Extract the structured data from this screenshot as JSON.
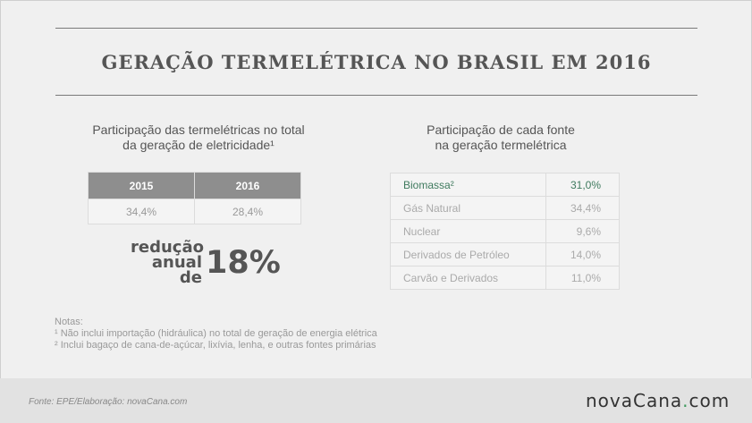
{
  "title": "GERAÇÃO TERMELÉTRICA NO BRASIL EM 2016",
  "left": {
    "title_line1": "Participação das termelétricas no total",
    "title_line2": "da geração de eletricidade¹",
    "headers": [
      "2015",
      "2016"
    ],
    "values": [
      "34,4%",
      "28,4%"
    ],
    "reduction_line1": "redução",
    "reduction_line2": "anual de",
    "reduction_value": "18%"
  },
  "right": {
    "title_line1": "Participação de cada fonte",
    "title_line2": "na geração termelétrica",
    "rows": [
      {
        "name": "Biomassa²",
        "value": "31,0%"
      },
      {
        "name": "Gás Natural",
        "value": "34,4%"
      },
      {
        "name": "Nuclear",
        "value": "9,6%"
      },
      {
        "name": "Derivados de Petróleo",
        "value": "14,0%"
      },
      {
        "name": "Carvão e Derivados",
        "value": "11,0%"
      }
    ],
    "highlight_color": "#3f7a5e"
  },
  "notes": {
    "heading": "Notas:",
    "note1": "¹ Não inclui importação (hidráulica) no total de geração de energia elétrica",
    "note2": "² Inclui bagaço de cana-de-açúcar, lixívia, lenha, e outras fontes primárias"
  },
  "footer": {
    "source": "Fonte: EPE/Elaboração: novaCana.com",
    "logo_main": "novaCana",
    "logo_dot": ".",
    "logo_tld": "com"
  }
}
